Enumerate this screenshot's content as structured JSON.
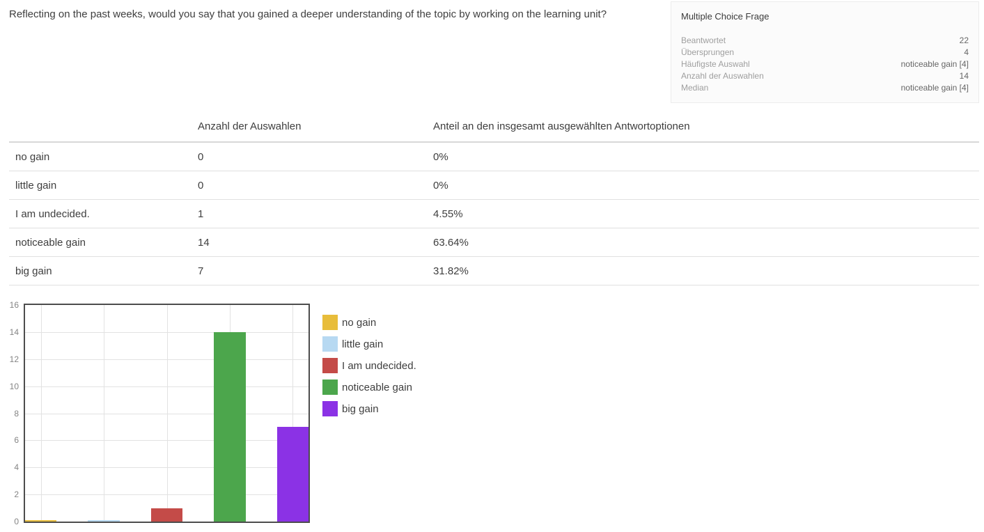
{
  "question": {
    "text": "Reflecting on the past weeks, would you say that you gained a deeper understanding of the topic by working on the learning unit?"
  },
  "stats_box": {
    "title": "Multiple Choice Frage",
    "rows": [
      {
        "label": "Beantwortet",
        "value": "22"
      },
      {
        "label": "Übersprungen",
        "value": "4"
      },
      {
        "label": "Häufigste Auswahl",
        "value": "noticeable gain [4]"
      },
      {
        "label": "Anzahl der Auswahlen",
        "value": "14"
      },
      {
        "label": "Median",
        "value": "noticeable gain [4]"
      }
    ]
  },
  "table": {
    "headers": [
      "",
      "Anzahl der Auswahlen",
      "Anteil an den insgesamt ausgewählten Antwortoptionen"
    ],
    "rows": [
      {
        "option": "no gain",
        "count": "0",
        "share": "0%"
      },
      {
        "option": "little gain",
        "count": "0",
        "share": "0%"
      },
      {
        "option": "I am undecided.",
        "count": "1",
        "share": "4.55%"
      },
      {
        "option": "noticeable gain",
        "count": "14",
        "share": "63.64%"
      },
      {
        "option": "big gain",
        "count": "7",
        "share": "31.82%"
      }
    ]
  },
  "chart_data": {
    "type": "bar",
    "categories": [
      "no gain",
      "little gain",
      "I am undecided.",
      "noticeable gain",
      "big gain"
    ],
    "values": [
      0,
      0,
      1,
      14,
      7
    ],
    "colors": [
      "#E8BD3B",
      "#B7D9F2",
      "#C44B48",
      "#4CA64C",
      "#8B32E5"
    ],
    "title": "",
    "xlabel": "",
    "ylabel": "",
    "ylim": [
      0,
      16
    ],
    "yticks": [
      0,
      2,
      4,
      6,
      8,
      10,
      12,
      14,
      16
    ],
    "grid": true,
    "gridline_color": "#e2e2e2",
    "frame_color": "#4d4d4d",
    "tick_color": "#848484",
    "legend_position": "right"
  }
}
